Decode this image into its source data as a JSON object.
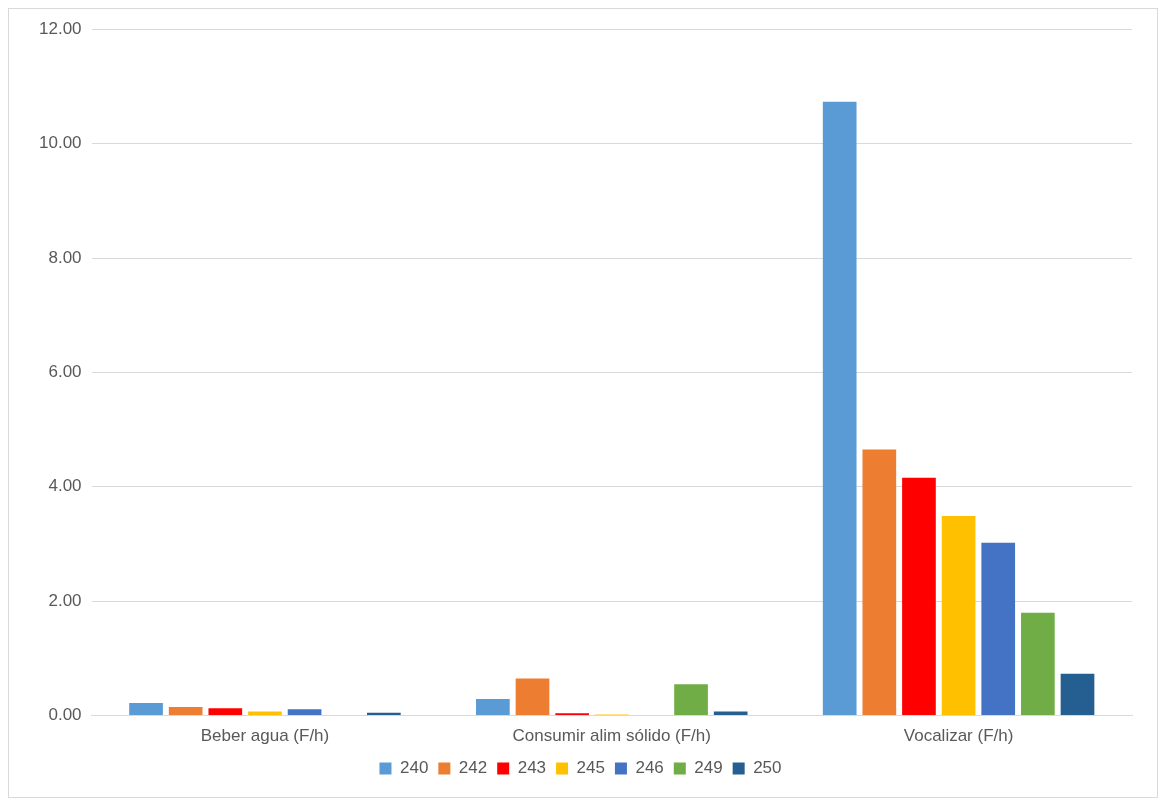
{
  "chart_data": {
    "type": "bar",
    "categories": [
      "Beber agua (F/h)",
      "Consumir alim sólido (F/h)",
      "Vocalizar (F/h)"
    ],
    "series": [
      {
        "name": "240",
        "color": "#5b9bd5",
        "values": [
          0.22,
          0.29,
          10.73
        ]
      },
      {
        "name": "242",
        "color": "#ed7d31",
        "values": [
          0.15,
          0.65,
          4.65
        ]
      },
      {
        "name": "243",
        "color": "#ff0000",
        "values": [
          0.13,
          0.04,
          4.16
        ]
      },
      {
        "name": "245",
        "color": "#ffc000",
        "values": [
          0.07,
          0.02,
          3.49
        ]
      },
      {
        "name": "246",
        "color": "#4472c4",
        "values": [
          0.11,
          0,
          3.02
        ]
      },
      {
        "name": "249",
        "color": "#70ad47",
        "values": [
          0,
          0.55,
          1.8
        ]
      },
      {
        "name": "250",
        "color": "#255e91",
        "values": [
          0.05,
          0.07,
          0.73
        ]
      }
    ],
    "ylim": [
      0,
      12
    ],
    "yticks": [
      {
        "value": 0,
        "label": "0.00"
      },
      {
        "value": 2,
        "label": "2.00"
      },
      {
        "value": 4,
        "label": "4.00"
      },
      {
        "value": 6,
        "label": "6.00"
      },
      {
        "value": 8,
        "label": "8.00"
      },
      {
        "value": 10,
        "label": "10.00"
      },
      {
        "value": 12,
        "label": "12.00"
      }
    ],
    "grid": "y",
    "legend": "bottom"
  }
}
